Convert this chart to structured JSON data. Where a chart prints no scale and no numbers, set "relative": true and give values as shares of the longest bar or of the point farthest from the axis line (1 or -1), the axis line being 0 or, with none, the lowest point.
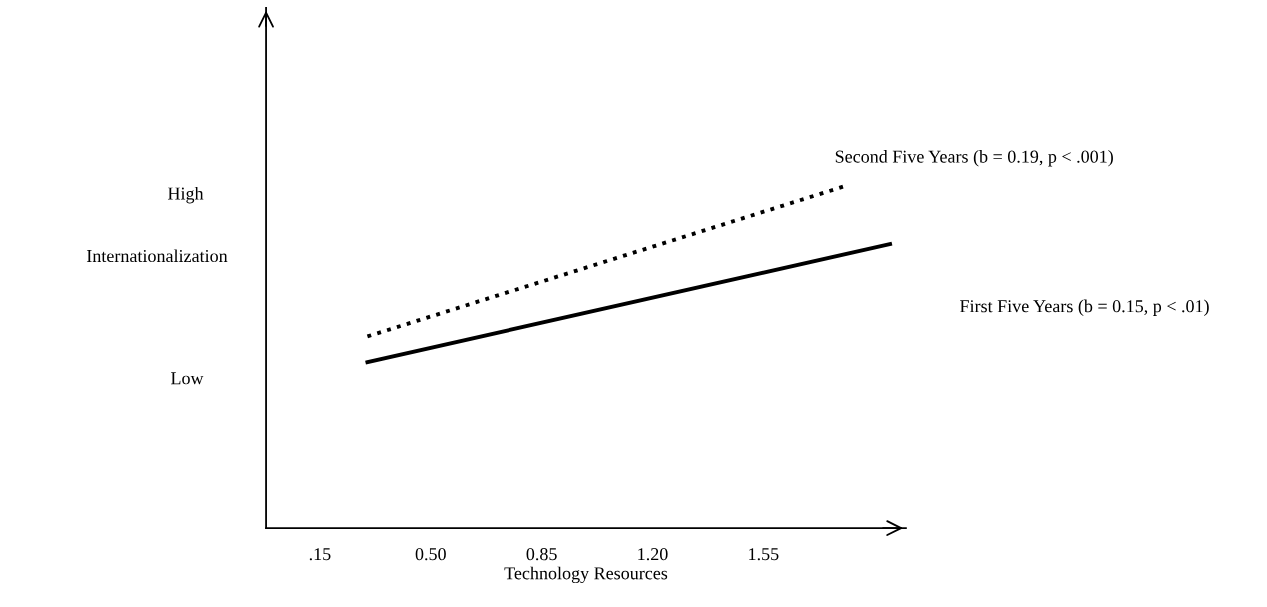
{
  "chart_data": {
    "type": "line",
    "xlabel": "Technology Resources",
    "ylabel": "Internationalization",
    "xlim": [
      -0.02,
      2.0
    ],
    "xticks": [
      {
        "value": 0.15,
        "label": ".15"
      },
      {
        "value": 0.5,
        "label": "0.50"
      },
      {
        "value": 0.85,
        "label": "0.85"
      },
      {
        "value": 1.2,
        "label": "1.20"
      },
      {
        "value": 1.55,
        "label": "1.55"
      }
    ],
    "relative": true,
    "annotations": [
      "Low",
      "High"
    ],
    "series": [
      {
        "name": "Second Five Years (b = 0.19, p < .001)",
        "color": "#000000",
        "line_style": "dotted",
        "x": [
          0.3,
          1.81
        ],
        "values": [
          0.56,
          1.0
        ]
      },
      {
        "name": "First Five Years (b = 0.15, p < .01)",
        "color": "#000000",
        "line_style": "solid",
        "x": [
          0.3,
          1.95
        ],
        "values": [
          0.485,
          0.83
        ]
      }
    ],
    "grid": false,
    "legend": false,
    "marker": "none"
  }
}
